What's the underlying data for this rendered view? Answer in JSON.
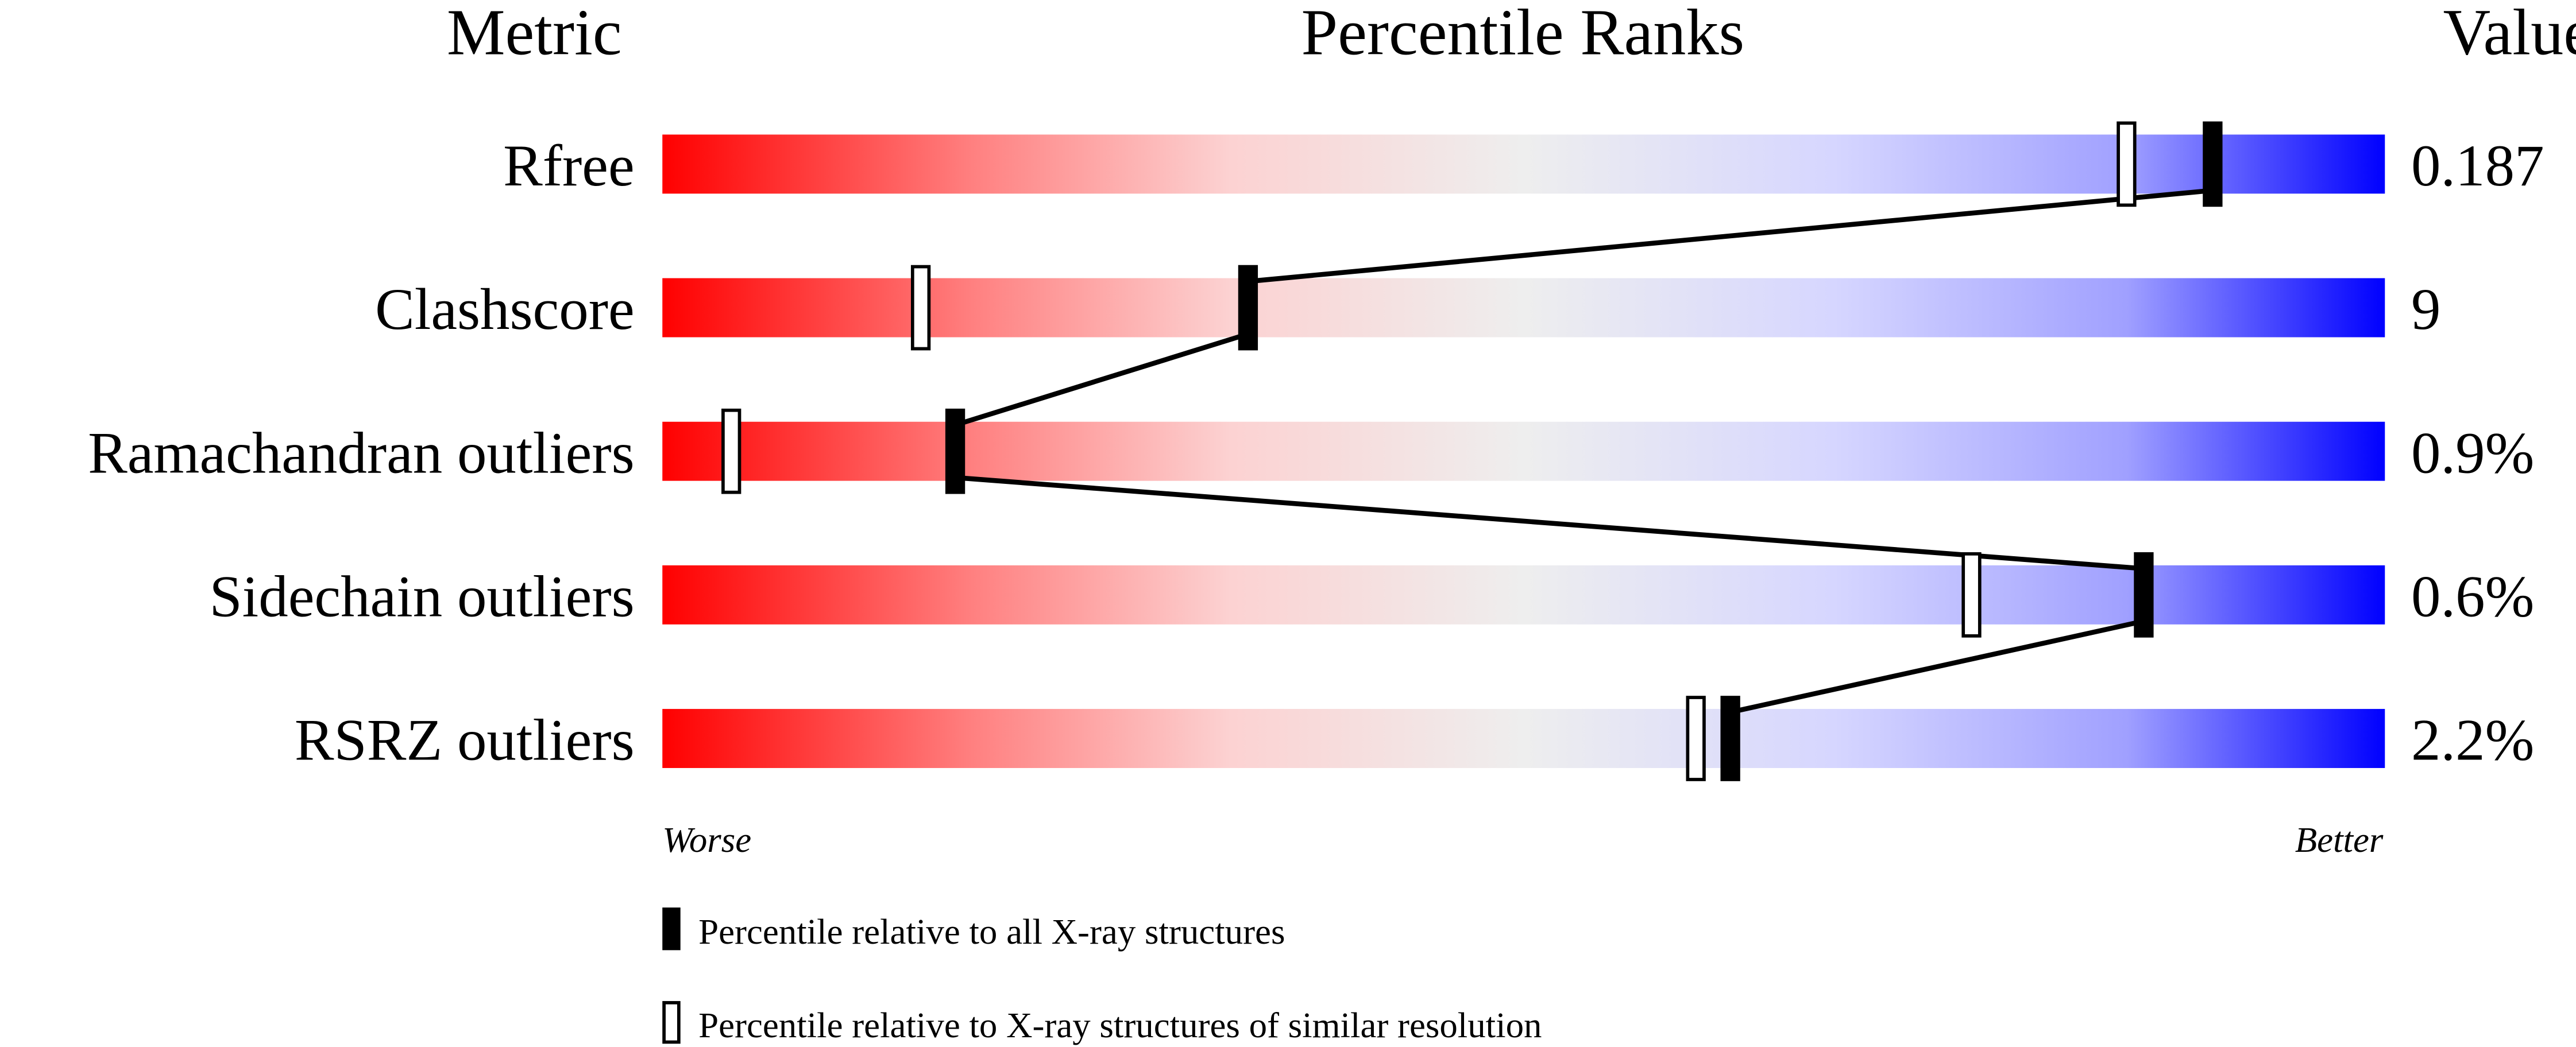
{
  "chart_data": {
    "type": "percentile-ranks",
    "headers": {
      "metric": "Metric",
      "ranks": "Percentile Ranks",
      "value": "Value"
    },
    "xlim": [
      0,
      100
    ],
    "axis_labels": {
      "left": "Worse",
      "right": "Better"
    },
    "gradient_colors": [
      "#ff0000",
      "#eeeeee",
      "#0000ff"
    ],
    "metrics": [
      {
        "name": "Rfree",
        "value": "0.187",
        "percentile_all": 90,
        "percentile_similar": 85
      },
      {
        "name": "Clashscore",
        "value": "9",
        "percentile_all": 34,
        "percentile_similar": 15
      },
      {
        "name": "Ramachandran outliers",
        "value": "0.9%",
        "percentile_all": 17,
        "percentile_similar": 4
      },
      {
        "name": "Sidechain outliers",
        "value": "0.6%",
        "percentile_all": 86,
        "percentile_similar": 76
      },
      {
        "name": "RSRZ outliers",
        "value": "2.2%",
        "percentile_all": 62,
        "percentile_similar": 60
      }
    ],
    "legend": [
      {
        "marker": "filled",
        "label": "Percentile relative to all X-ray structures"
      },
      {
        "marker": "open",
        "label": "Percentile relative to X-ray structures of similar resolution"
      }
    ]
  }
}
